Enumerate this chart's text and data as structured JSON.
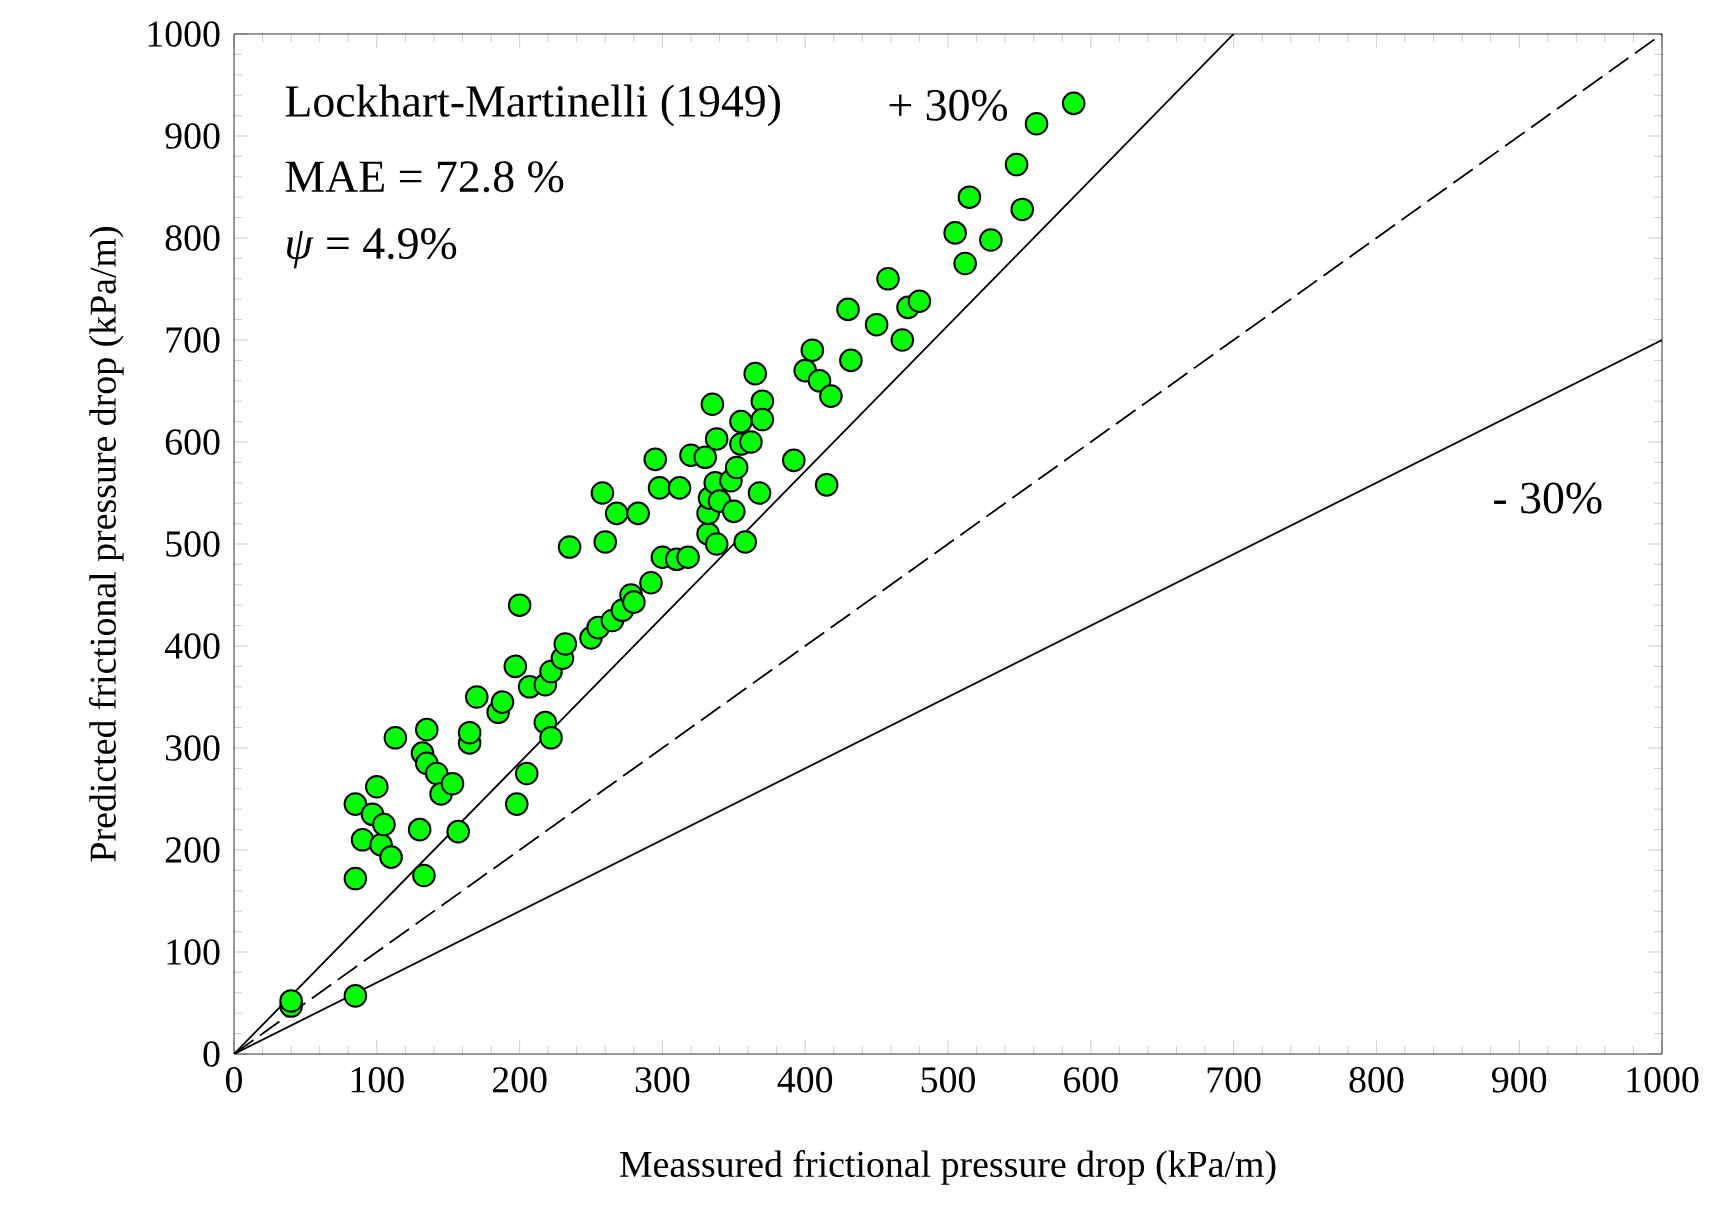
{
  "chart_data": {
    "type": "scatter",
    "xlabel": "Meassured frictional pressure drop (kPa/m)",
    "ylabel": "Predicted frictional pressure drop (kPa/m)",
    "xlim": [
      0,
      1000
    ],
    "ylim": [
      0,
      1000
    ],
    "xticks": [
      0,
      100,
      200,
      300,
      400,
      500,
      600,
      700,
      800,
      900,
      1000
    ],
    "yticks": [
      0,
      100,
      200,
      300,
      400,
      500,
      600,
      700,
      800,
      900,
      1000
    ],
    "grid": false,
    "annotations": [
      "Lockhart-Martinelli (1949)",
      "MAE = 72.8 %",
      "*ψ* = 4.9%",
      "+ 30%",
      "- 30%"
    ],
    "series": [
      {
        "type": "line",
        "color": "#000000",
        "line_style": "solid",
        "marker": "none",
        "x": [
          0,
          700
        ],
        "values": [
          0,
          1000
        ]
      },
      {
        "type": "line",
        "color": "#000000",
        "line_style": "dashed",
        "marker": "none",
        "x": [
          0,
          1000
        ],
        "values": [
          0,
          1000
        ]
      },
      {
        "type": "line",
        "color": "#000000",
        "line_style": "solid",
        "marker": "none",
        "x": [
          0,
          1000
        ],
        "values": [
          0,
          700
        ]
      },
      {
        "type": "scatter",
        "color": "#00ff00",
        "marker": "circle",
        "x": [
          40,
          40,
          85,
          85,
          85,
          90,
          97,
          100,
          103,
          105,
          110,
          113,
          130,
          132,
          133,
          135,
          135,
          142,
          145,
          153,
          157,
          165,
          165,
          170,
          185,
          188,
          197,
          198,
          200,
          205,
          207,
          218,
          218,
          222,
          222,
          230,
          232,
          235,
          250,
          255,
          258,
          260,
          265,
          268,
          272,
          278,
          280,
          283,
          292,
          295,
          298,
          300,
          310,
          312,
          318,
          320,
          330,
          332,
          332,
          333,
          335,
          337,
          338,
          338,
          340,
          348,
          350,
          352,
          355,
          355,
          358,
          362,
          365,
          368,
          370,
          370,
          392,
          400,
          405,
          410,
          415,
          418,
          430,
          432,
          450,
          458,
          468,
          472,
          480,
          505,
          512,
          515,
          530,
          548,
          552,
          562,
          588
        ],
        "values": [
          47,
          52,
          57,
          172,
          245,
          210,
          235,
          262,
          205,
          225,
          193,
          310,
          220,
          295,
          175,
          285,
          318,
          275,
          255,
          265,
          218,
          305,
          315,
          350,
          335,
          345,
          380,
          245,
          440,
          275,
          360,
          325,
          362,
          310,
          375,
          388,
          402,
          497,
          408,
          418,
          550,
          502,
          425,
          530,
          435,
          450,
          443,
          530,
          462,
          583,
          555,
          487,
          485,
          555,
          487,
          587,
          585,
          510,
          530,
          545,
          637,
          560,
          603,
          500,
          542,
          562,
          532,
          575,
          620,
          598,
          502,
          600,
          667,
          550,
          640,
          622,
          582,
          670,
          690,
          660,
          558,
          645,
          730,
          680,
          715,
          760,
          700,
          732,
          738,
          805,
          775,
          840,
          798,
          872,
          828,
          912,
          932
        ]
      }
    ]
  }
}
